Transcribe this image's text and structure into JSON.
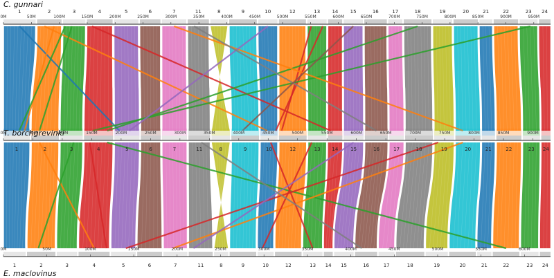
{
  "species": {
    "top": "C. gunnari",
    "middle": "T. borchgrevinki",
    "bottom": "E. maclovinus"
  },
  "palette": [
    "#1f77b4",
    "#ff7f0e",
    "#2ca02c",
    "#d62728",
    "#9467bd",
    "#8c564b",
    "#e377c2",
    "#7f7f7f",
    "#bcbd22",
    "#17becf"
  ],
  "genomes": {
    "top": {
      "ticks": [
        "0M",
        "50M",
        "100M",
        "150M",
        "200M",
        "250M",
        "300M",
        "350M",
        "400M",
        "450M",
        "500M",
        "550M",
        "600M",
        "650M",
        "700M",
        "750M",
        "800M",
        "850M",
        "900M",
        "950M"
      ],
      "chromosomes": [
        {
          "label": "1",
          "size": 50
        },
        {
          "label": "2",
          "size": 38
        },
        {
          "label": "3",
          "size": 35
        },
        {
          "label": "4",
          "size": 40
        },
        {
          "label": "5",
          "size": 38
        },
        {
          "label": "6",
          "size": 32
        },
        {
          "label": "7",
          "size": 38
        },
        {
          "label": "11",
          "size": 33
        },
        {
          "label": "8",
          "size": 27
        },
        {
          "label": "9",
          "size": 43
        },
        {
          "label": "10",
          "size": 30
        },
        {
          "label": "12",
          "size": 42
        },
        {
          "label": "13",
          "size": 30
        },
        {
          "label": "14",
          "size": 22
        },
        {
          "label": "15",
          "size": 30
        },
        {
          "label": "16",
          "size": 35
        },
        {
          "label": "17",
          "size": 22
        },
        {
          "label": "18",
          "size": 43
        },
        {
          "label": "19",
          "size": 30
        },
        {
          "label": "20",
          "size": 38
        },
        {
          "label": "21",
          "size": 20
        },
        {
          "label": "22",
          "size": 38
        },
        {
          "label": "23",
          "size": 28
        },
        {
          "label": "24",
          "size": 18
        }
      ]
    },
    "middle": {
      "ticks": [
        "0M",
        "50M",
        "100M",
        "150M",
        "200M",
        "250M",
        "300M",
        "350M",
        "400M",
        "450M",
        "500M",
        "550M",
        "600M",
        "650M",
        "700M",
        "750M",
        "800M",
        "850M",
        "900M"
      ],
      "chromosomes": [
        {
          "label": "1",
          "size": 40
        },
        {
          "label": "2",
          "size": 42
        },
        {
          "label": "3",
          "size": 34
        },
        {
          "label": "4",
          "size": 44
        },
        {
          "label": "5",
          "size": 38
        },
        {
          "label": "6",
          "size": 30
        },
        {
          "label": "7",
          "size": 38
        },
        {
          "label": "11",
          "size": 33
        },
        {
          "label": "8",
          "size": 28
        },
        {
          "label": "9",
          "size": 42
        },
        {
          "label": "10",
          "size": 26
        },
        {
          "label": "12",
          "size": 42
        },
        {
          "label": "13",
          "size": 28
        },
        {
          "label": "14",
          "size": 22
        },
        {
          "label": "15",
          "size": 30
        },
        {
          "label": "16",
          "size": 35
        },
        {
          "label": "17",
          "size": 22
        },
        {
          "label": "18",
          "size": 42
        },
        {
          "label": "19",
          "size": 30
        },
        {
          "label": "20",
          "size": 38
        },
        {
          "label": "21",
          "size": 20
        },
        {
          "label": "22",
          "size": 38
        },
        {
          "label": "23",
          "size": 26
        },
        {
          "label": "24",
          "size": 14
        }
      ]
    },
    "bottom": {
      "ticks": [
        "0M",
        "50M",
        "100M",
        "150M",
        "200M",
        "250M",
        "300M",
        "350M",
        "400M",
        "450M",
        "500M",
        "550M",
        "600M"
      ],
      "chromosomes": [
        {
          "label": "1",
          "size": 25
        },
        {
          "label": "2",
          "size": 32
        },
        {
          "label": "3",
          "size": 23
        },
        {
          "label": "4",
          "size": 35
        },
        {
          "label": "5",
          "size": 28
        },
        {
          "label": "6",
          "size": 28
        },
        {
          "label": "7",
          "size": 27
        },
        {
          "label": "11",
          "size": 27
        },
        {
          "label": "8",
          "size": 16
        },
        {
          "label": "9",
          "size": 30
        },
        {
          "label": "10",
          "size": 18
        },
        {
          "label": "12",
          "size": 30
        },
        {
          "label": "13",
          "size": 22
        },
        {
          "label": "14",
          "size": 10
        },
        {
          "label": "15",
          "size": 22
        },
        {
          "label": "16",
          "size": 25
        },
        {
          "label": "17",
          "size": 18
        },
        {
          "label": "18",
          "size": 32
        },
        {
          "label": "19",
          "size": 25
        },
        {
          "label": "20",
          "size": 30
        },
        {
          "label": "21",
          "size": 16
        },
        {
          "label": "22",
          "size": 30
        },
        {
          "label": "23",
          "size": 20
        },
        {
          "label": "24",
          "size": 12
        }
      ]
    }
  },
  "translocations": {
    "top_middle": [
      {
        "from": [
          0,
          0.5
        ],
        "to": [
          4,
          0.2
        ],
        "color": "#1f77b4"
      },
      {
        "from": [
          1,
          0.3
        ],
        "to": [
          10,
          0.4
        ],
        "color": "#ff7f0e"
      },
      {
        "from": [
          1,
          0.7
        ],
        "to": [
          0,
          0.8
        ],
        "color": "#ff7f0e"
      },
      {
        "from": [
          2,
          0.1
        ],
        "to": [
          0,
          0.6
        ],
        "color": "#2ca02c"
      },
      {
        "from": [
          2,
          0.4
        ],
        "to": [
          1,
          0.3
        ],
        "color": "#2ca02c"
      },
      {
        "from": [
          3,
          0.2
        ],
        "to": [
          13,
          0.2
        ],
        "color": "#d62728"
      },
      {
        "from": [
          12,
          0.2
        ],
        "to": [
          11,
          0.1
        ],
        "color": "#d62728"
      },
      {
        "from": [
          12,
          0.8
        ],
        "to": [
          10,
          0.9
        ],
        "color": "#d62728"
      },
      {
        "from": [
          22,
          0.6
        ],
        "to": [
          3,
          0.3
        ],
        "color": "#2ca02c"
      },
      {
        "from": [
          17,
          0.5
        ],
        "to": [
          3,
          0.8
        ],
        "color": "#2ca02c"
      },
      {
        "from": [
          6,
          0.5
        ],
        "to": [
          19,
          0.3
        ],
        "color": "#ff7f0e"
      },
      {
        "from": [
          10,
          0.5
        ],
        "to": [
          4,
          0.6
        ],
        "color": "#9467bd"
      },
      {
        "from": [
          7,
          0.3
        ],
        "to": [
          15,
          0.5
        ],
        "color": "#7f7f7f"
      },
      {
        "from": [
          14,
          0.5
        ],
        "to": [
          9,
          0.4
        ],
        "color": "#8c564b"
      }
    ],
    "middle_bottom": [
      {
        "from": [
          1,
          0.3
        ],
        "to": [
          3,
          0.5
        ],
        "color": "#ff7f0e"
      },
      {
        "from": [
          2,
          0.6
        ],
        "to": [
          1,
          0.4
        ],
        "color": "#2ca02c"
      },
      {
        "from": [
          3,
          0.2
        ],
        "to": [
          3,
          0.9
        ],
        "color": "#d62728"
      },
      {
        "from": [
          3,
          0.8
        ],
        "to": [
          21,
          0.5
        ],
        "color": "#2ca02c"
      },
      {
        "from": [
          19,
          0.3
        ],
        "to": [
          6,
          0.4
        ],
        "color": "#ff7f0e"
      },
      {
        "from": [
          12,
          0.2
        ],
        "to": [
          10,
          0.3
        ],
        "color": "#d62728"
      },
      {
        "from": [
          10,
          0.6
        ],
        "to": [
          12,
          0.5
        ],
        "color": "#d62728"
      },
      {
        "from": [
          18,
          0.2
        ],
        "to": [
          4,
          0.6
        ],
        "color": "#d62728"
      },
      {
        "from": [
          14,
          0.5
        ],
        "to": [
          7,
          0.2
        ],
        "color": "#9467bd"
      },
      {
        "from": [
          7,
          0.6
        ],
        "to": [
          15,
          0.3
        ],
        "color": "#7f7f7f"
      }
    ]
  }
}
